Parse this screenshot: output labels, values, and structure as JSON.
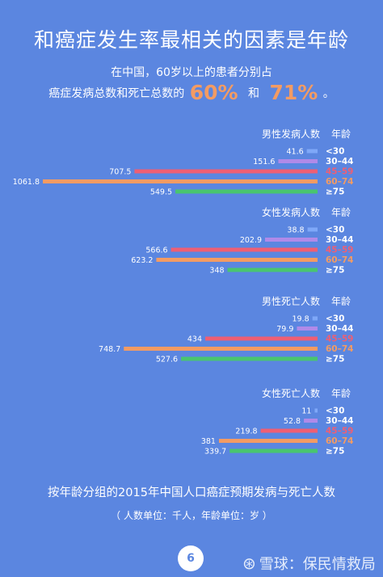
{
  "title": "和癌症发生率最相关的因素是年龄",
  "intro": {
    "line1": "在中国，60岁以上的患者分别占",
    "line2_prefix": "癌症发病总数和死亡总数的",
    "pct1": "60%",
    "connector": "和",
    "pct2": "71%",
    "suffix": "。"
  },
  "colors": {
    "background": "#5b86e0",
    "highlight": "#f39b63",
    "lt30": "#7fa8f8",
    "30_44": "#b08ae8",
    "45_59": "#ee5f74",
    "60_74": "#f39b63",
    "ge75": "#49c56f"
  },
  "chart_data": {
    "type": "bar",
    "orientation": "horizontal",
    "categories": [
      "<30",
      "30–44",
      "45–59",
      "60–74",
      "≥75"
    ],
    "age_header": "年龄",
    "groups": [
      {
        "name": "男性发病人数",
        "values": [
          41.6,
          151.6,
          707.5,
          1061.8,
          549.5
        ],
        "labels": [
          "41.6",
          "151.6",
          "707.5",
          "1061.8",
          "549.5"
        ]
      },
      {
        "name": "女性发病人数",
        "values": [
          38.8,
          202.9,
          566.6,
          623.2,
          348
        ],
        "labels": [
          "38.8",
          "202.9",
          "566.6",
          "623.2",
          "348"
        ]
      },
      {
        "name": "男性死亡人数",
        "values": [
          19.8,
          79.9,
          434,
          748.7,
          527.6
        ],
        "labels": [
          "19.8",
          "79.9",
          "434",
          "748.7",
          "527.6"
        ]
      },
      {
        "name": "女性死亡人数",
        "values": [
          11,
          52.8,
          219.8,
          381,
          339.7
        ],
        "labels": [
          "11",
          "52.8",
          "219.8",
          "381",
          "339.7"
        ]
      }
    ]
  },
  "caption": "按年龄分组的2015年中国人口癌症预期发病与死亡人数",
  "units": "（ 人数单位：千人，年龄单位：岁 ）",
  "page_number": "6",
  "watermark": {
    "logo": "⊛",
    "text": "雪球：保民情救局"
  }
}
